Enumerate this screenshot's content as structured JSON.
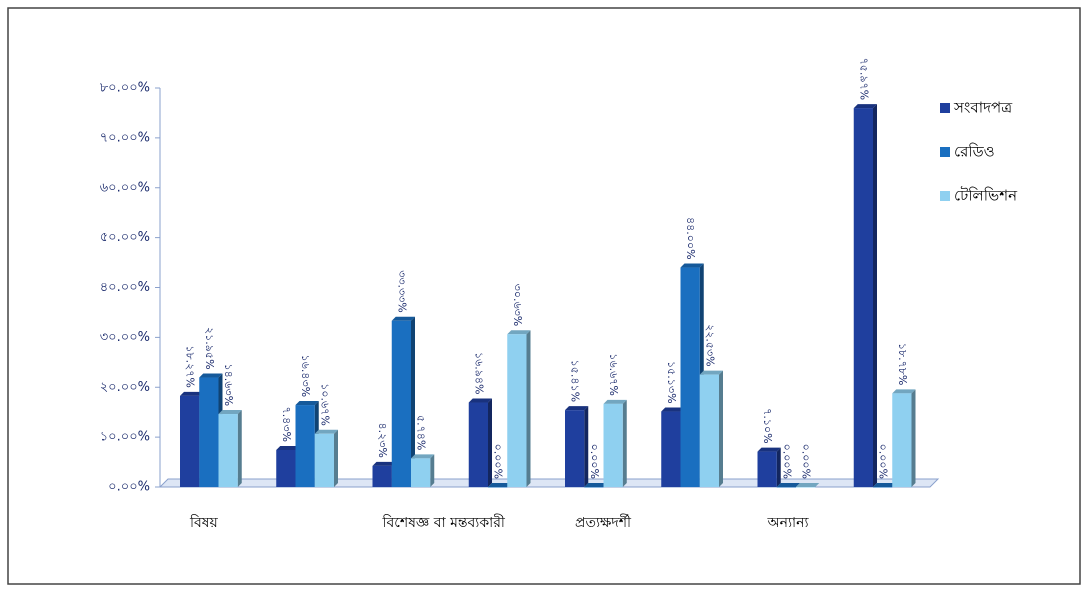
{
  "chart_data": {
    "type": "bar",
    "categories": [
      "বিষয়",
      null,
      "বিশেষজ্ঞ বা মন্তব্যকারী",
      null,
      "প্রত্যক্ষদর্শী",
      null,
      "অন্যান্য",
      null
    ],
    "series": [
      {
        "name": "সংবাদপত্র",
        "color": "#1f3f9e",
        "values": [
          18.27,
          7.43,
          4.23,
          16.94,
          15.41,
          15.13,
          7.1,
          75.97
        ],
        "value_labels": [
          "১৮.২৭%",
          "৭.৪৩%",
          "৪.২৩%",
          "১৬.৯৪%",
          "১৫.৪১%",
          "১৫.১৩%",
          "৭.১০%",
          "৭৫.৯৭%"
        ]
      },
      {
        "name": "রেডিও",
        "color": "#1a6fc0",
        "values": [
          21.95,
          16.43,
          33.33,
          0,
          0,
          44,
          0,
          0
        ],
        "value_labels": [
          "২১.৯৫%",
          "১৬.৪৩%",
          "৩৩.৩৩%",
          "০.০০%",
          "০.০০%",
          "৪৪.০০%",
          "০.০০%",
          "০.০০%"
        ]
      },
      {
        "name": "টেলিভিশন",
        "color": "#8fd0f0",
        "values": [
          14.63,
          10.67,
          5.74,
          30.63,
          16.67,
          22.53,
          0,
          18.78
        ],
        "value_labels": [
          "১৪.৬৩%",
          "১০.৬৭%",
          "৫.৭৪%",
          "৩০.৬৩%",
          "১৬.৬৭%",
          "২২.৫৩%",
          "০.০০%",
          "১৮.৭৮%"
        ]
      }
    ],
    "ylim": [
      0,
      80
    ],
    "yticks": [
      {
        "value": 0,
        "label": "০.০০%"
      },
      {
        "value": 10,
        "label": "১০.০০%"
      },
      {
        "value": 20,
        "label": "২০.০০%"
      },
      {
        "value": 30,
        "label": "৩০.০০%"
      },
      {
        "value": 40,
        "label": "৪০.০০%"
      },
      {
        "value": 50,
        "label": "৫০.০০%"
      },
      {
        "value": 60,
        "label": "৬০.০০%"
      },
      {
        "value": 70,
        "label": "৭০.০০%"
      },
      {
        "value": 80,
        "label": "৮০.০০%"
      }
    ],
    "legend": "right"
  }
}
